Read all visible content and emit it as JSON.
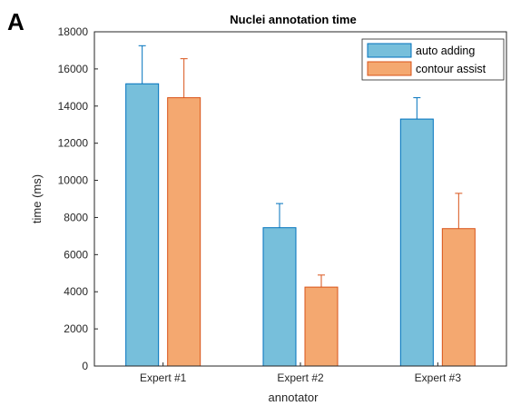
{
  "panel_label": "A",
  "colors": {
    "series_1": "#77bfdb",
    "series_1_stroke": "#0072bd",
    "series_2": "#f4a870",
    "series_2_stroke": "#d95319",
    "axis": "#262626"
  },
  "chart_data": {
    "type": "bar",
    "title": "Nuclei annotation time",
    "xlabel": "annotator",
    "ylabel": "time (ms)",
    "categories": [
      "Expert #1",
      "Expert #2",
      "Expert #3"
    ],
    "series": [
      {
        "name": "auto adding",
        "values": [
          15200,
          7450,
          13300
        ],
        "error": [
          2050,
          1300,
          1150
        ]
      },
      {
        "name": "contour assist",
        "values": [
          14450,
          4250,
          7400
        ],
        "error": [
          2100,
          650,
          1900
        ]
      }
    ],
    "ylim": [
      0,
      18000
    ],
    "yticks": [
      0,
      2000,
      4000,
      6000,
      8000,
      10000,
      12000,
      14000,
      16000,
      18000
    ],
    "grid": false,
    "legend_position": "top-right",
    "error_bars": "upper"
  }
}
